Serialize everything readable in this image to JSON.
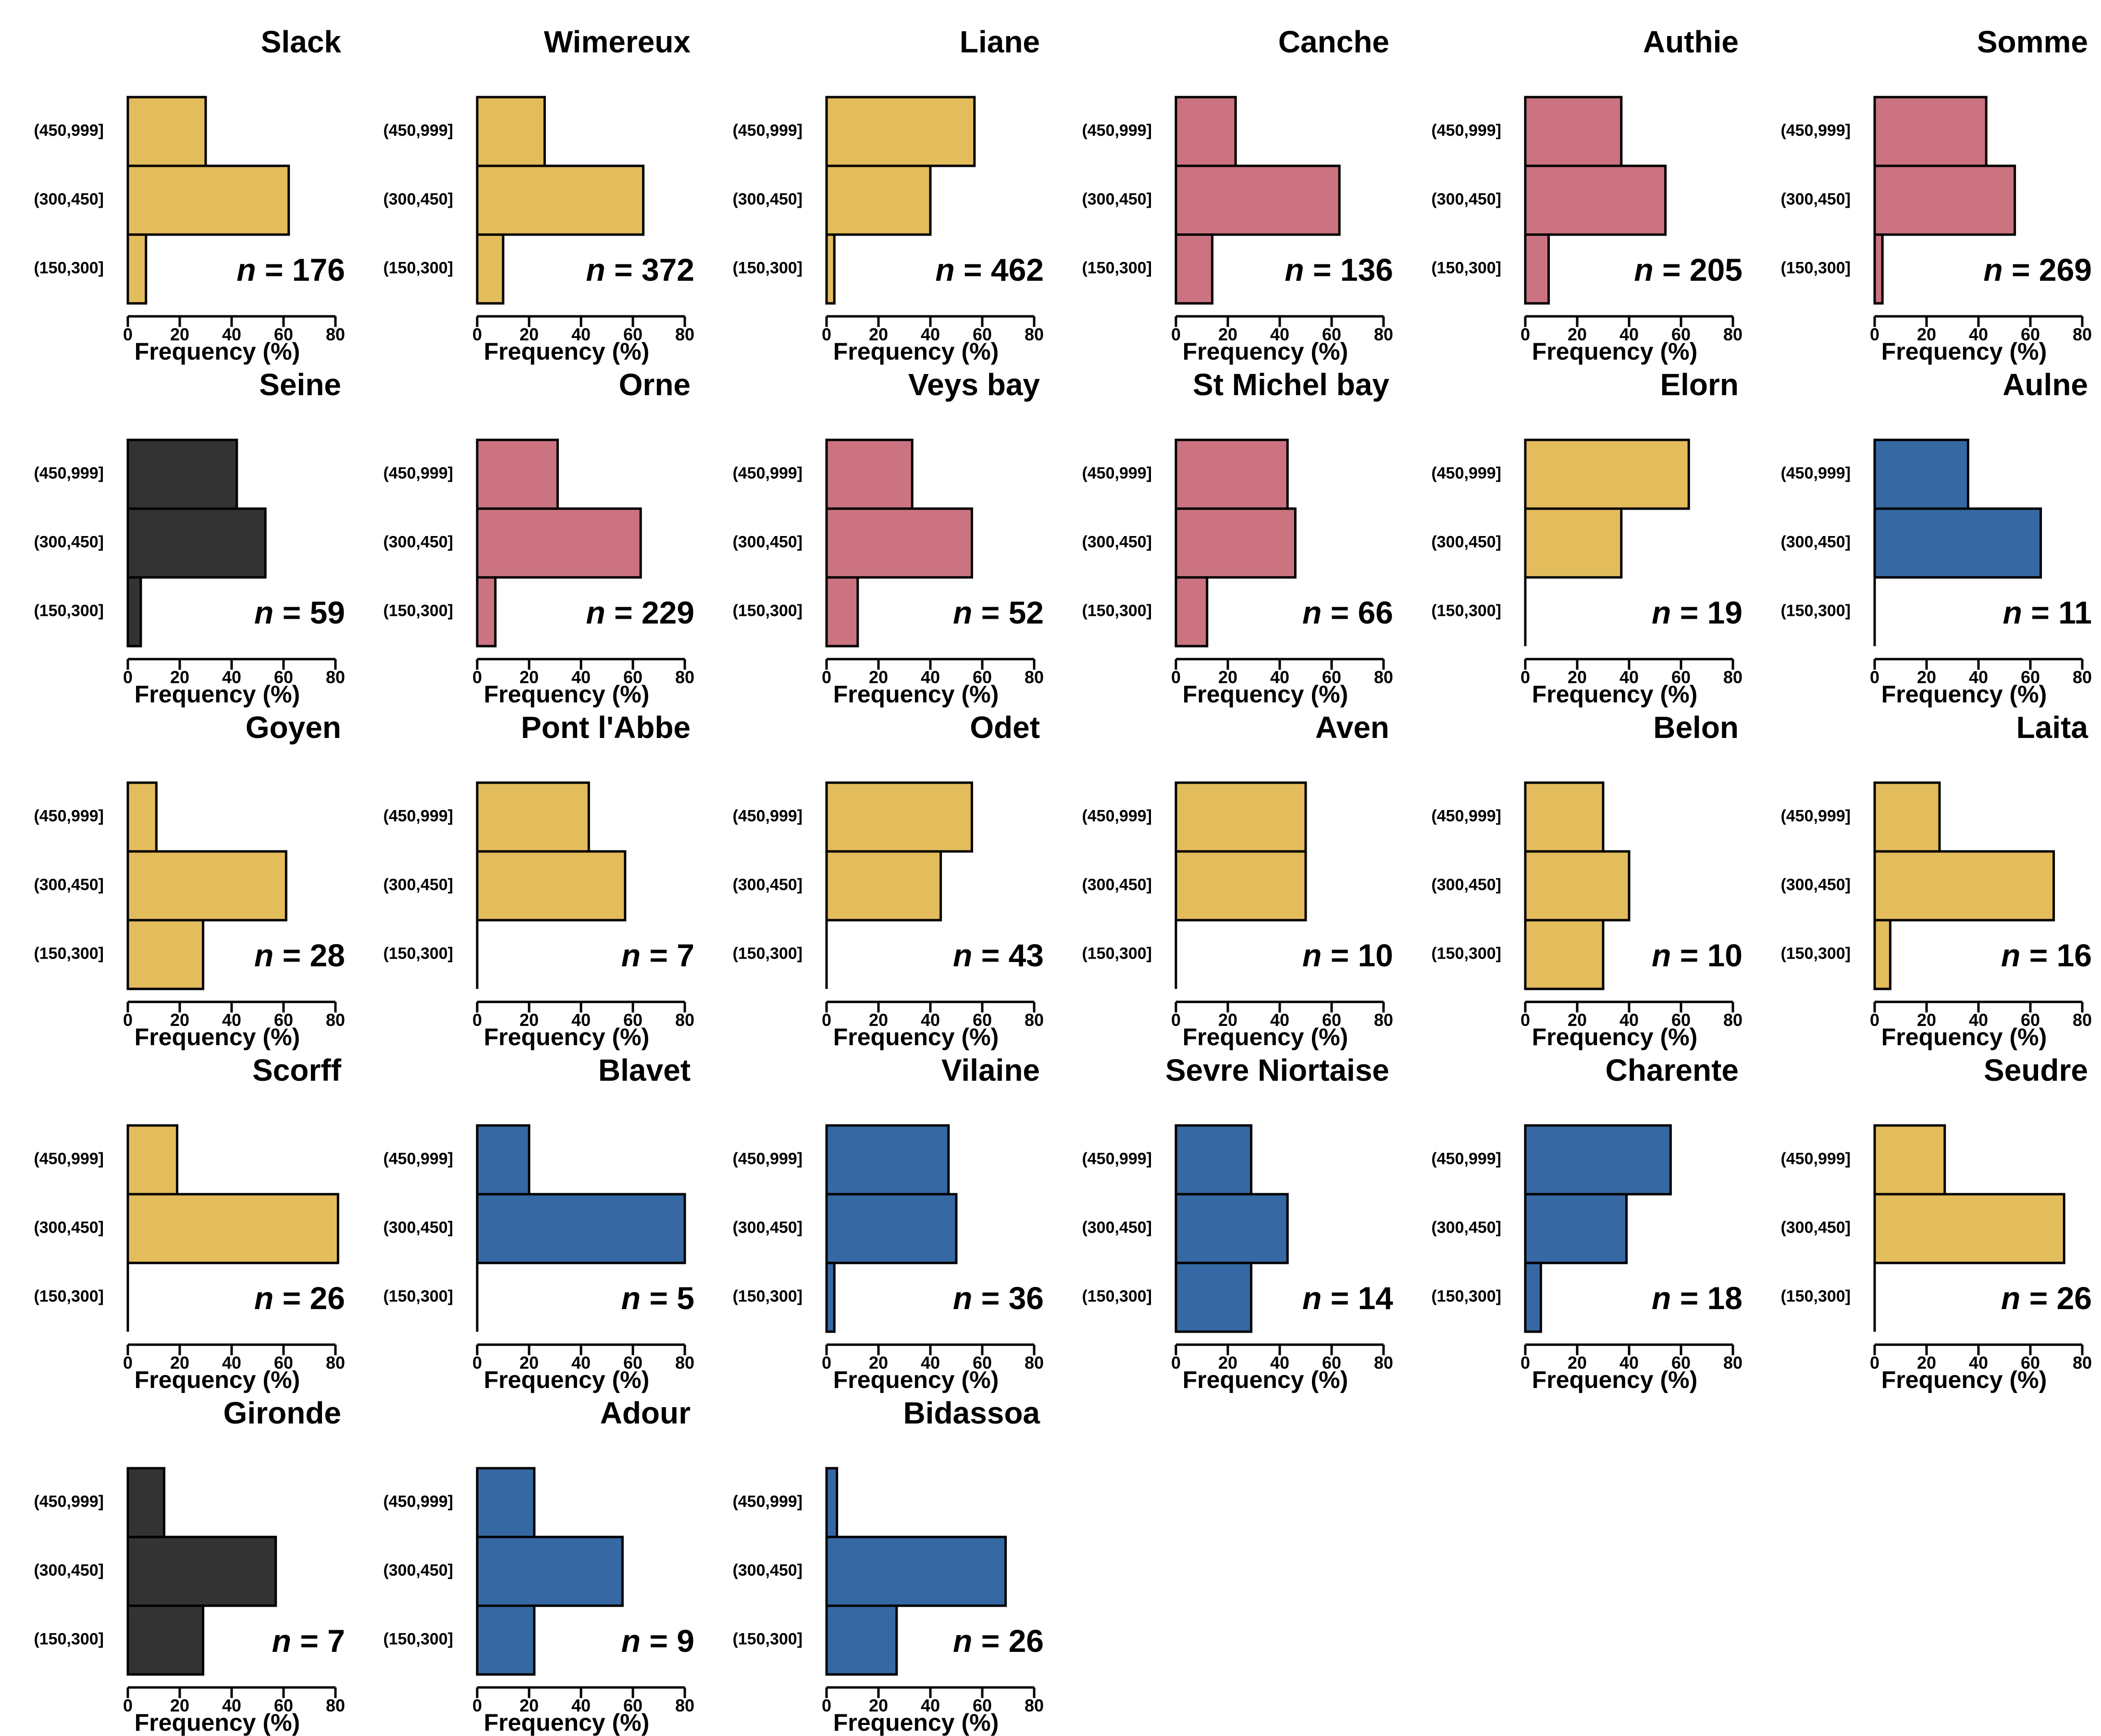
{
  "chart_data": {
    "type": "bar",
    "orientation": "horizontal",
    "categories": [
      "(150,300]",
      "(300,450]",
      "(450,999]"
    ],
    "xlabel": "Frequency (%)",
    "xlim": [
      0,
      80
    ],
    "xticks": [
      "0",
      "20",
      "40",
      "60",
      "80"
    ],
    "n_prefix": "n",
    "n_equals": "=",
    "colors": {
      "yellow": "#E3BD5C",
      "pink": "#CB7380",
      "blue": "#3669A3",
      "black": "#333333",
      "outline": "#000000"
    },
    "panels": [
      {
        "title": "Slack",
        "color": "yellow",
        "n": "176",
        "values": [
          7,
          62,
          30
        ]
      },
      {
        "title": "Wimereux",
        "color": "yellow",
        "n": "372",
        "values": [
          10,
          64,
          26
        ]
      },
      {
        "title": "Liane",
        "color": "yellow",
        "n": "462",
        "values": [
          3,
          40,
          57
        ]
      },
      {
        "title": "Canche",
        "color": "pink",
        "n": "136",
        "values": [
          14,
          63,
          23
        ]
      },
      {
        "title": "Authie",
        "color": "pink",
        "n": "205",
        "values": [
          9,
          54,
          37
        ]
      },
      {
        "title": "Somme",
        "color": "pink",
        "n": "269",
        "values": [
          3,
          54,
          43
        ]
      },
      {
        "title": "Seine",
        "color": "black",
        "n": "59",
        "values": [
          5,
          53,
          42
        ]
      },
      {
        "title": "Orne",
        "color": "pink",
        "n": "229",
        "values": [
          7,
          63,
          31
        ]
      },
      {
        "title": "Veys bay",
        "color": "pink",
        "n": "52",
        "values": [
          12,
          56,
          33
        ]
      },
      {
        "title": "St Michel bay",
        "color": "pink",
        "n": "66",
        "values": [
          12,
          46,
          43
        ]
      },
      {
        "title": "Elorn",
        "color": "yellow",
        "n": "19",
        "values": [
          0,
          37,
          63
        ]
      },
      {
        "title": "Aulne",
        "color": "blue",
        "n": "11",
        "values": [
          0,
          64,
          36
        ]
      },
      {
        "title": "Goyen",
        "color": "yellow",
        "n": "28",
        "values": [
          29,
          61,
          11
        ]
      },
      {
        "title": "Pont l'Abbe",
        "color": "yellow",
        "n": "7",
        "values": [
          0,
          57,
          43
        ]
      },
      {
        "title": "Odet",
        "color": "yellow",
        "n": "43",
        "values": [
          0,
          44,
          56
        ]
      },
      {
        "title": "Aven",
        "color": "yellow",
        "n": "10",
        "values": [
          0,
          50,
          50
        ]
      },
      {
        "title": "Belon",
        "color": "yellow",
        "n": "10",
        "values": [
          30,
          40,
          30
        ]
      },
      {
        "title": "Laita",
        "color": "yellow",
        "n": "16",
        "values": [
          6,
          69,
          25
        ]
      },
      {
        "title": "Scorff",
        "color": "yellow",
        "n": "26",
        "values": [
          0,
          81,
          19
        ]
      },
      {
        "title": "Blavet",
        "color": "blue",
        "n": "5",
        "values": [
          0,
          80,
          20
        ]
      },
      {
        "title": "Vilaine",
        "color": "blue",
        "n": "36",
        "values": [
          3,
          50,
          47
        ]
      },
      {
        "title": "Sevre Niortaise",
        "color": "blue",
        "n": "14",
        "values": [
          29,
          43,
          29
        ]
      },
      {
        "title": "Charente",
        "color": "blue",
        "n": "18",
        "values": [
          6,
          39,
          56
        ]
      },
      {
        "title": "Seudre",
        "color": "yellow",
        "n": "26",
        "values": [
          0,
          73,
          27
        ]
      },
      {
        "title": "Gironde",
        "color": "black",
        "n": "7",
        "values": [
          29,
          57,
          14
        ]
      },
      {
        "title": "Adour",
        "color": "blue",
        "n": "9",
        "values": [
          22,
          56,
          22
        ]
      },
      {
        "title": "Bidassoa",
        "color": "blue",
        "n": "26",
        "values": [
          27,
          69,
          4
        ]
      }
    ]
  }
}
